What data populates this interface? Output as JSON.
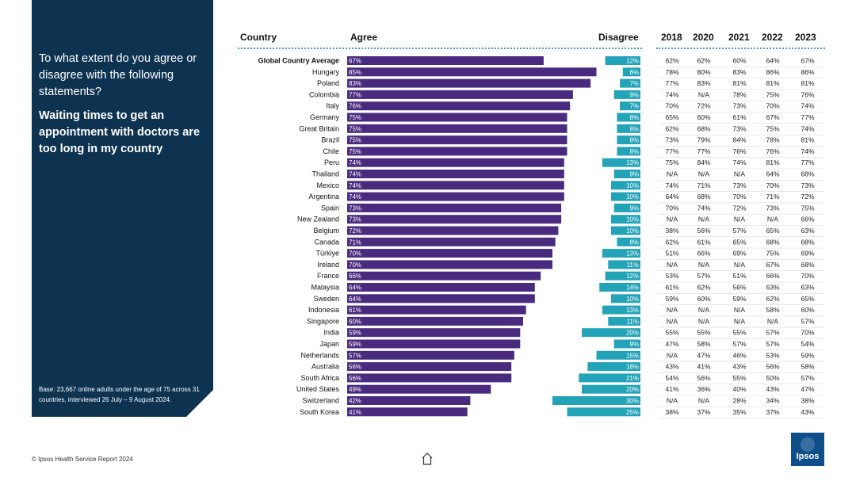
{
  "question": {
    "intro": "To what extent do you agree or disagree with the following statements?",
    "statement": "Waiting times to get an appointment with doctors are too long in my country"
  },
  "base_note": "Base: 23,667 online adults under the age of 75 across 31 countries, interviewed 26 July – 9 August 2024.",
  "footer": {
    "source": "© Ipsos Health Service Report 2024",
    "logo_text": "Ipsos"
  },
  "icons": {
    "home": "home-icon",
    "logo": "ipsos-logo"
  },
  "colors": {
    "panel": "#0e3351",
    "agree": "#4a2a7e",
    "disagree": "#22a3b8",
    "dots": "#3aa3c0"
  },
  "headers": {
    "country": "Country",
    "agree": "Agree",
    "disagree": "Disagree",
    "years": [
      "2018",
      "2020",
      "2021",
      "2022",
      "2023"
    ]
  },
  "chart_data": {
    "type": "bar",
    "title": "Waiting times to get an appointment with doctors are too long in my country",
    "xlabel": "",
    "ylabel": "",
    "series": [
      {
        "name": "Agree",
        "unit": "%"
      },
      {
        "name": "Disagree",
        "unit": "%"
      }
    ],
    "rows": [
      {
        "country": "Global Country Average",
        "agree": 67,
        "disagree": 12,
        "trend": [
          "62%",
          "62%",
          "60%",
          "64%",
          "67%"
        ]
      },
      {
        "country": "Hungary",
        "agree": 85,
        "disagree": 6,
        "trend": [
          "78%",
          "80%",
          "83%",
          "86%",
          "86%"
        ]
      },
      {
        "country": "Poland",
        "agree": 83,
        "disagree": 7,
        "trend": [
          "77%",
          "83%",
          "81%",
          "81%",
          "81%"
        ]
      },
      {
        "country": "Colombia",
        "agree": 77,
        "disagree": 9,
        "trend": [
          "74%",
          "N/A",
          "78%",
          "75%",
          "76%"
        ]
      },
      {
        "country": "Italy",
        "agree": 76,
        "disagree": 7,
        "trend": [
          "70%",
          "72%",
          "73%",
          "70%",
          "74%"
        ]
      },
      {
        "country": "Germany",
        "agree": 75,
        "disagree": 8,
        "trend": [
          "65%",
          "60%",
          "61%",
          "67%",
          "77%"
        ]
      },
      {
        "country": "Great Britain",
        "agree": 75,
        "disagree": 8,
        "trend": [
          "62%",
          "68%",
          "73%",
          "75%",
          "74%"
        ]
      },
      {
        "country": "Brazil",
        "agree": 75,
        "disagree": 8,
        "trend": [
          "73%",
          "79%",
          "84%",
          "78%",
          "81%"
        ]
      },
      {
        "country": "Chile",
        "agree": 75,
        "disagree": 8,
        "trend": [
          "77%",
          "77%",
          "76%",
          "76%",
          "74%"
        ]
      },
      {
        "country": "Peru",
        "agree": 74,
        "disagree": 13,
        "trend": [
          "75%",
          "84%",
          "74%",
          "81%",
          "77%"
        ]
      },
      {
        "country": "Thailand",
        "agree": 74,
        "disagree": 9,
        "trend": [
          "N/A",
          "N/A",
          "N/A",
          "64%",
          "68%"
        ]
      },
      {
        "country": "Mexico",
        "agree": 74,
        "disagree": 10,
        "trend": [
          "74%",
          "71%",
          "73%",
          "70%",
          "73%"
        ]
      },
      {
        "country": "Argentina",
        "agree": 74,
        "disagree": 10,
        "trend": [
          "64%",
          "68%",
          "70%",
          "71%",
          "72%"
        ]
      },
      {
        "country": "Spain",
        "agree": 73,
        "disagree": 9,
        "trend": [
          "70%",
          "74%",
          "72%",
          "73%",
          "75%"
        ]
      },
      {
        "country": "New Zealand",
        "agree": 73,
        "disagree": 10,
        "trend": [
          "N/A",
          "N/A",
          "N/A",
          "N/A",
          "66%"
        ]
      },
      {
        "country": "Belgium",
        "agree": 72,
        "disagree": 10,
        "trend": [
          "38%",
          "56%",
          "57%",
          "65%",
          "63%"
        ]
      },
      {
        "country": "Canada",
        "agree": 71,
        "disagree": 8,
        "trend": [
          "62%",
          "61%",
          "65%",
          "68%",
          "68%"
        ]
      },
      {
        "country": "Türkiye",
        "agree": 70,
        "disagree": 13,
        "trend": [
          "51%",
          "66%",
          "69%",
          "75%",
          "69%"
        ]
      },
      {
        "country": "Ireland",
        "agree": 70,
        "disagree": 11,
        "trend": [
          "N/A",
          "N/A",
          "N/A",
          "67%",
          "68%"
        ]
      },
      {
        "country": "France",
        "agree": 66,
        "disagree": 12,
        "trend": [
          "53%",
          "57%",
          "51%",
          "66%",
          "70%"
        ]
      },
      {
        "country": "Malaysia",
        "agree": 64,
        "disagree": 14,
        "trend": [
          "61%",
          "62%",
          "56%",
          "63%",
          "63%"
        ]
      },
      {
        "country": "Sweden",
        "agree": 64,
        "disagree": 10,
        "trend": [
          "59%",
          "60%",
          "59%",
          "62%",
          "65%"
        ]
      },
      {
        "country": "Indonesia",
        "agree": 61,
        "disagree": 13,
        "trend": [
          "N/A",
          "N/A",
          "N/A",
          "58%",
          "60%"
        ]
      },
      {
        "country": "Singapore",
        "agree": 60,
        "disagree": 11,
        "trend": [
          "N/A",
          "N/A",
          "N/A",
          "N/A",
          "57%"
        ]
      },
      {
        "country": "India",
        "agree": 59,
        "disagree": 20,
        "trend": [
          "55%",
          "55%",
          "55%",
          "57%",
          "70%"
        ]
      },
      {
        "country": "Japan",
        "agree": 59,
        "disagree": 9,
        "trend": [
          "47%",
          "58%",
          "57%",
          "57%",
          "54%"
        ]
      },
      {
        "country": "Netherlands",
        "agree": 57,
        "disagree": 15,
        "trend": [
          "N/A",
          "47%",
          "46%",
          "53%",
          "59%"
        ]
      },
      {
        "country": "Australia",
        "agree": 56,
        "disagree": 18,
        "trend": [
          "43%",
          "41%",
          "43%",
          "56%",
          "58%"
        ]
      },
      {
        "country": "South Africa",
        "agree": 56,
        "disagree": 21,
        "trend": [
          "54%",
          "56%",
          "55%",
          "50%",
          "57%"
        ]
      },
      {
        "country": "United States",
        "agree": 49,
        "disagree": 20,
        "trend": [
          "41%",
          "36%",
          "40%",
          "43%",
          "47%"
        ]
      },
      {
        "country": "Switzerland",
        "agree": 42,
        "disagree": 30,
        "trend": [
          "N/A",
          "N/A",
          "28%",
          "34%",
          "38%"
        ]
      },
      {
        "country": "South Korea",
        "agree": 41,
        "disagree": 25,
        "trend": [
          "38%",
          "37%",
          "35%",
          "37%",
          "43%"
        ]
      }
    ]
  }
}
